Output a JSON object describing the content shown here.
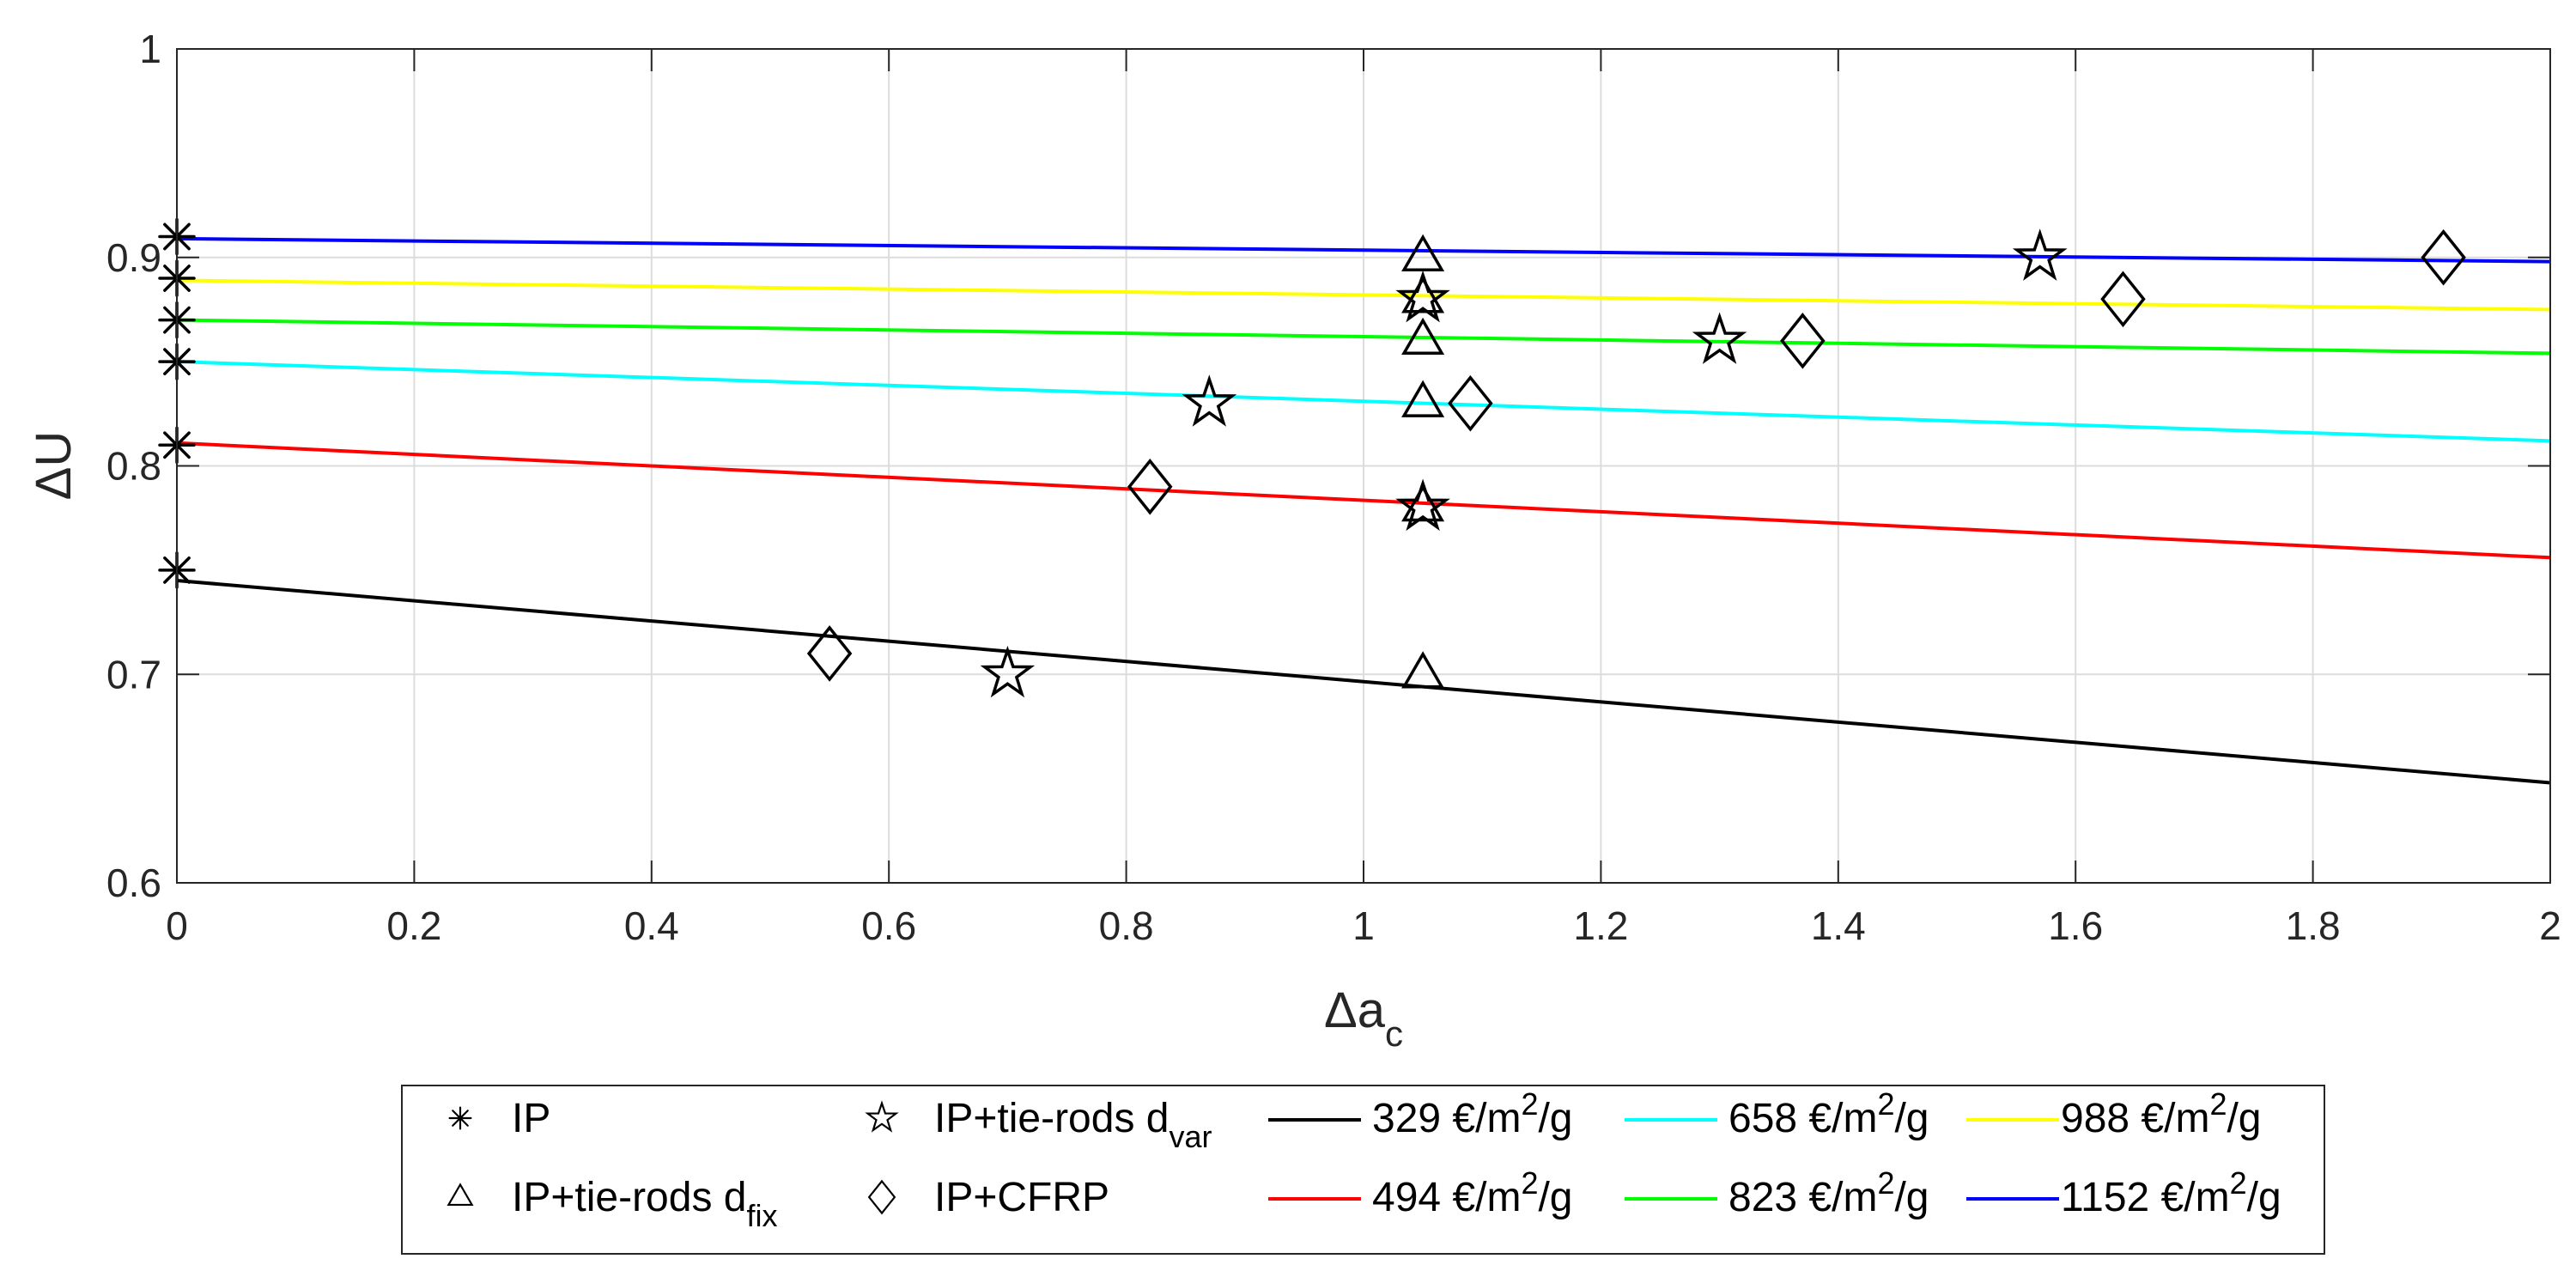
{
  "chart_data": {
    "type": "scatter",
    "xlabel": {
      "main": "Δa",
      "sub": "c"
    },
    "ylabel": "ΔU",
    "xlim": [
      0,
      2
    ],
    "ylim": [
      0.6,
      1
    ],
    "xticks": [
      0,
      0.2,
      0.4,
      0.6,
      0.8,
      1,
      1.2,
      1.4,
      1.6,
      1.8,
      2
    ],
    "xtick_labels": [
      "0",
      "0.2",
      "0.4",
      "0.6",
      "0.8",
      "1",
      "1.2",
      "1.4",
      "1.6",
      "1.8",
      "2"
    ],
    "yticks": [
      0.6,
      0.7,
      0.8,
      0.9,
      1
    ],
    "ytick_labels": [
      "0.6",
      "0.7",
      "0.8",
      "0.9",
      "1"
    ],
    "grid": true,
    "legend_position": "bottom",
    "marker_series": [
      {
        "name": "IP",
        "name_sub": "",
        "marker": "asterisk",
        "points": [
          [
            0,
            0.91
          ],
          [
            0,
            0.89
          ],
          [
            0,
            0.87
          ],
          [
            0,
            0.85
          ],
          [
            0,
            0.81
          ],
          [
            0,
            0.75
          ]
        ]
      },
      {
        "name": "IP+tie-rods d",
        "name_sub": "fix",
        "marker": "triangle",
        "points": [
          [
            1.05,
            0.9
          ],
          [
            1.05,
            0.88
          ],
          [
            1.05,
            0.86
          ],
          [
            1.05,
            0.83
          ],
          [
            1.05,
            0.78
          ],
          [
            1.05,
            0.7
          ]
        ]
      },
      {
        "name": "IP+tie-rods d",
        "name_sub": "var",
        "marker": "star",
        "points": [
          [
            0.7,
            0.7
          ],
          [
            0.87,
            0.83
          ],
          [
            1.05,
            0.78
          ],
          [
            1.05,
            0.88
          ],
          [
            1.3,
            0.86
          ],
          [
            1.57,
            0.9
          ]
        ]
      },
      {
        "name": "IP+CFRP",
        "name_sub": "",
        "marker": "diamond",
        "points": [
          [
            0.55,
            0.71
          ],
          [
            0.82,
            0.79
          ],
          [
            1.09,
            0.83
          ],
          [
            1.37,
            0.86
          ],
          [
            1.64,
            0.88
          ],
          [
            1.91,
            0.9
          ]
        ]
      }
    ],
    "line_series": [
      {
        "label_pre": "329 €/m",
        "label_sup": "2",
        "label_post": "/g",
        "color": "#000000",
        "x": [
          0,
          2
        ],
        "y": [
          0.745,
          0.648
        ]
      },
      {
        "label_pre": "494 €/m",
        "label_sup": "2",
        "label_post": "/g",
        "color": "#ff0000",
        "x": [
          0,
          2
        ],
        "y": [
          0.811,
          0.756
        ]
      },
      {
        "label_pre": "658 €/m",
        "label_sup": "2",
        "label_post": "/g",
        "color": "#00ffff",
        "x": [
          0,
          2
        ],
        "y": [
          0.85,
          0.812
        ]
      },
      {
        "label_pre": "823 €/m",
        "label_sup": "2",
        "label_post": "/g",
        "color": "#00ff00",
        "x": [
          0,
          2
        ],
        "y": [
          0.87,
          0.854
        ]
      },
      {
        "label_pre": "988 €/m",
        "label_sup": "2",
        "label_post": "/g",
        "color": "#ffff00",
        "x": [
          0,
          2
        ],
        "y": [
          0.889,
          0.875
        ]
      },
      {
        "label_pre": "1152 €/m",
        "label_sup": "2",
        "label_post": "/g",
        "color": "#0000ff",
        "x": [
          0,
          2
        ],
        "y": [
          0.909,
          0.898
        ]
      }
    ]
  }
}
